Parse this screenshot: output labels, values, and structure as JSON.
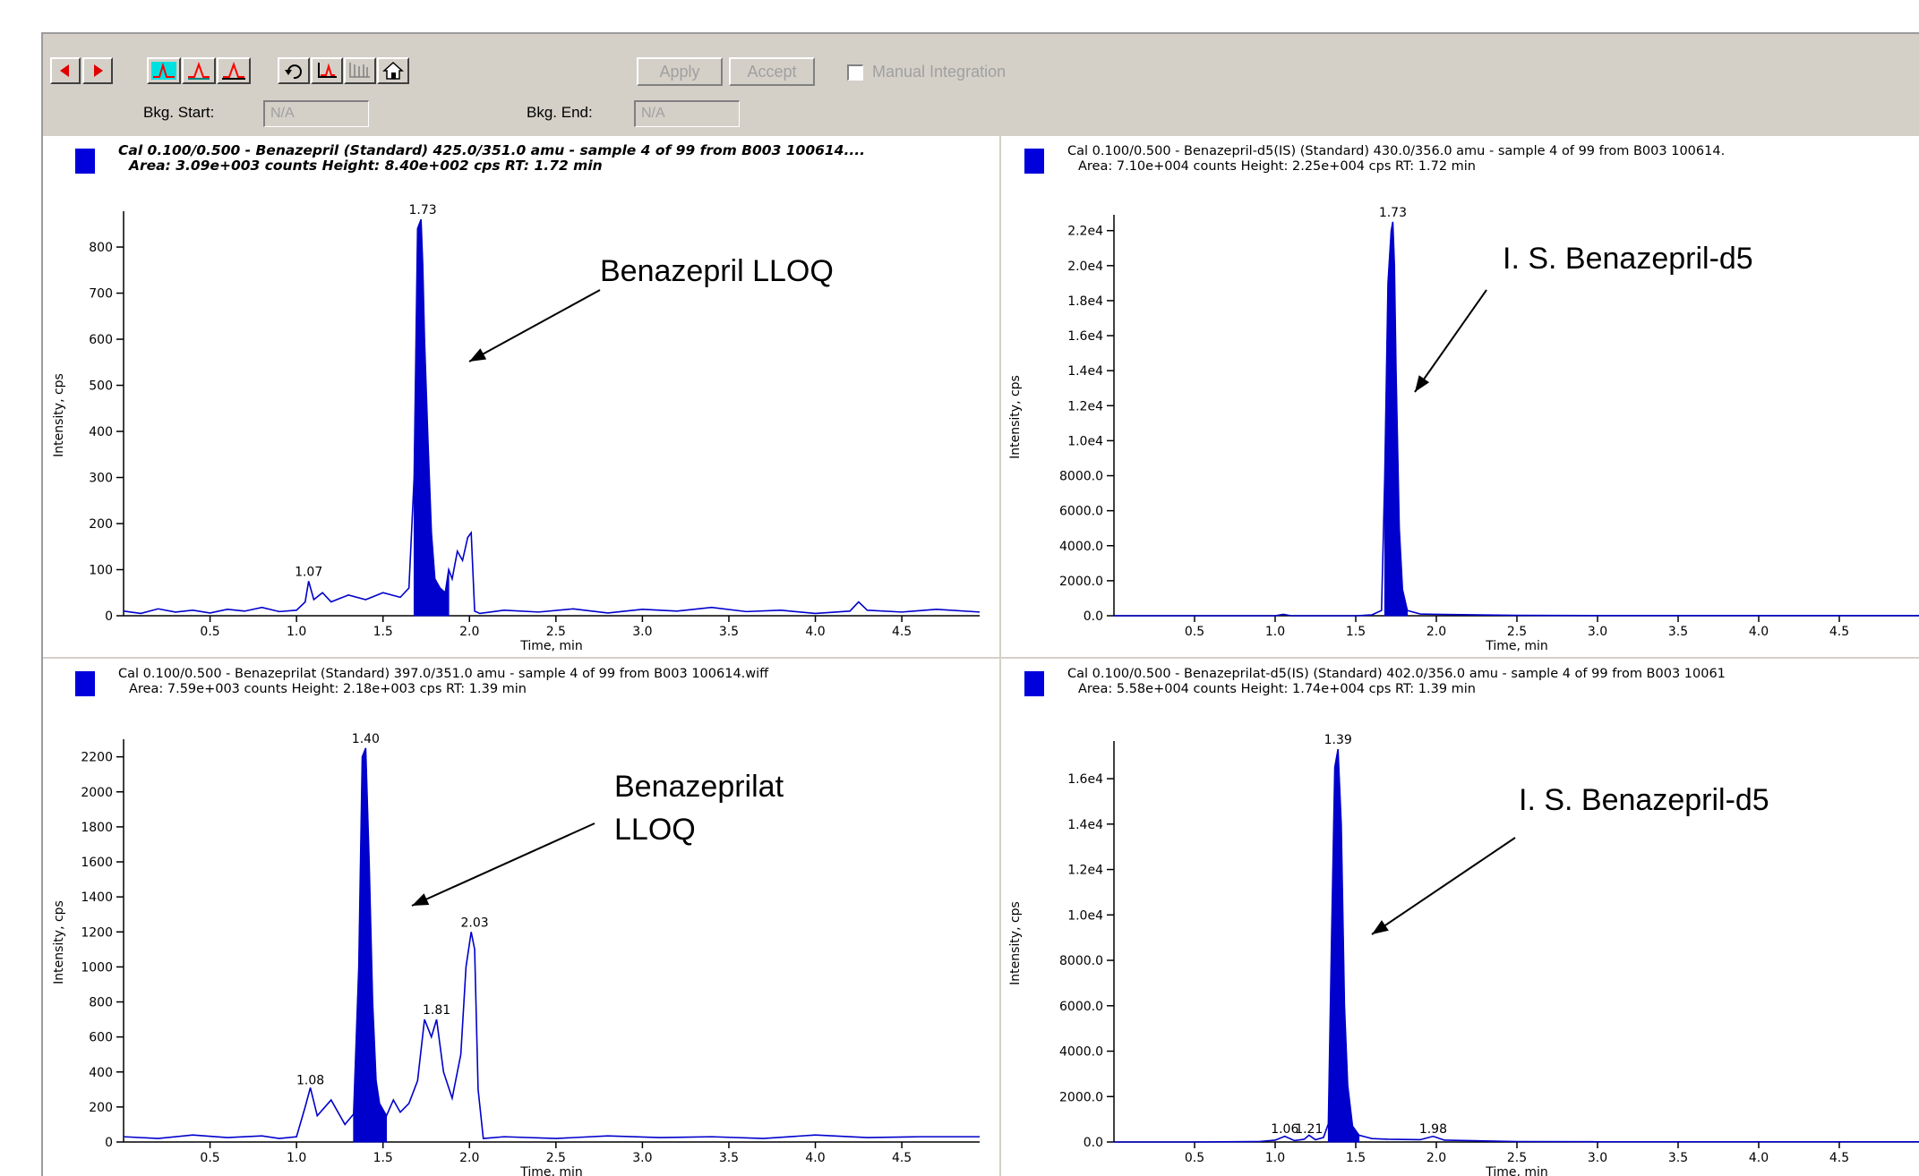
{
  "toolbar": {
    "apply_label": "Apply",
    "accept_label": "Accept",
    "manual_integration_label": "Manual Integration",
    "bkg_start_label": "Bkg. Start:",
    "bkg_start_value": "N/A",
    "bkg_end_label": "Bkg. End:",
    "bkg_end_value": "N/A",
    "icons": [
      "arrow-left-icon",
      "arrow-right-icon",
      "peak-cyan-icon",
      "peak-outline-icon",
      "peak-red-icon",
      "refresh-icon",
      "baseline-icon",
      "multi-peak-icon",
      "home-icon"
    ]
  },
  "colors": {
    "trace": "#0000cc",
    "marker": "#0000dd",
    "toolbar": "#d4d0c8",
    "arrow_red": "#d00000"
  },
  "panels": [
    {
      "header1": "Cal 0.100/0.500 - Benazepril (Standard) 425.0/351.0 amu - sample 4 of 99 from B003 100614....",
      "header2": "Area: 3.09e+003 counts  Height: 8.40e+002 cps  RT: 1.72 min",
      "header_style": "bold-italic",
      "annotation": "Benazepril LLOQ"
    },
    {
      "header1": "Cal 0.100/0.500 - Benazepril-d5(IS) (Standard) 430.0/356.0 amu - sample 4 of 99 from B003 100614.",
      "header2": "Area: 7.10e+004 counts  Height: 2.25e+004 cps  RT: 1.72 min",
      "header_style": "normal",
      "annotation": "I. S. Benazepril-d5"
    },
    {
      "header1": "Cal 0.100/0.500 - Benazeprilat (Standard) 397.0/351.0 amu - sample 4 of 99 from B003 100614.wiff",
      "header2": "Area: 7.59e+003 counts  Height: 2.18e+003 cps  RT: 1.39 min",
      "header_style": "normal",
      "annotation": "Benazeprilat\nLLOQ"
    },
    {
      "header1": "Cal 0.100/0.500 - Benazeprilat-d5(IS) (Standard) 402.0/356.0 amu - sample 4 of 99 from B003 10061",
      "header2": "Area: 5.58e+004 counts  Height: 1.74e+004 cps  RT: 1.39 min",
      "header_style": "normal",
      "annotation": "I. S. Benazepril-d5"
    }
  ],
  "chart_data": [
    {
      "type": "line",
      "xlabel": "Time, min",
      "ylabel": "Intensity, cps",
      "xlim": [
        0.0,
        4.95
      ],
      "ylim": [
        0,
        870
      ],
      "xticks": [
        0.5,
        1.0,
        1.5,
        2.0,
        2.5,
        3.0,
        3.5,
        4.0,
        4.5
      ],
      "xtick_labels": [
        "0.5",
        "1.0",
        "1.5",
        "2.0",
        "2.5",
        "3.0",
        "3.5",
        "4.0",
        "4.5"
      ],
      "yticks": [
        0,
        100,
        200,
        300,
        400,
        500,
        600,
        700,
        800
      ],
      "ytick_labels": [
        "0",
        "100",
        "200",
        "300",
        "400",
        "500",
        "600",
        "700",
        "800"
      ],
      "peak_labels": [
        {
          "x": 1.07,
          "y": 75,
          "text": "1.07"
        },
        {
          "x": 1.73,
          "y": 860,
          "text": "1.73"
        }
      ],
      "integrated_region": [
        1.66,
        1.88
      ],
      "series": [
        {
          "x": [
            0.0,
            0.1,
            0.2,
            0.3,
            0.4,
            0.5,
            0.6,
            0.7,
            0.8,
            0.9,
            1.0,
            1.05,
            1.07,
            1.1,
            1.15,
            1.2,
            1.3,
            1.4,
            1.5,
            1.6,
            1.65,
            1.68,
            1.7,
            1.72,
            1.73,
            1.74,
            1.76,
            1.78,
            1.8,
            1.83,
            1.86,
            1.88,
            1.9,
            1.93,
            1.96,
            1.99,
            2.01,
            2.03,
            2.06,
            2.2,
            2.4,
            2.6,
            2.8,
            3.0,
            3.2,
            3.4,
            3.6,
            3.8,
            4.0,
            4.2,
            4.25,
            4.3,
            4.5,
            4.7,
            4.95
          ],
          "y": [
            10,
            5,
            15,
            8,
            12,
            6,
            14,
            10,
            18,
            9,
            12,
            30,
            75,
            35,
            50,
            30,
            45,
            35,
            50,
            40,
            60,
            300,
            840,
            860,
            760,
            600,
            380,
            180,
            80,
            60,
            50,
            100,
            80,
            140,
            120,
            170,
            180,
            10,
            5,
            12,
            8,
            15,
            6,
            14,
            10,
            18,
            9,
            12,
            5,
            10,
            30,
            12,
            8,
            14,
            8
          ]
        }
      ]
    },
    {
      "type": "line",
      "xlabel": "Time, min",
      "ylabel": "Intensity, cps",
      "xlim": [
        0.0,
        5.0
      ],
      "ylim": [
        0,
        22700
      ],
      "xticks": [
        0.5,
        1.0,
        1.5,
        2.0,
        2.5,
        3.0,
        3.5,
        4.0,
        4.5
      ],
      "xtick_labels": [
        "0.5",
        "1.0",
        "1.5",
        "2.0",
        "2.5",
        "3.0",
        "3.5",
        "4.0",
        "4.5"
      ],
      "yticks": [
        0,
        2000,
        4000,
        6000,
        8000,
        10000,
        12000,
        14000,
        16000,
        18000,
        20000,
        22000
      ],
      "ytick_labels": [
        "0.0",
        "2000.0",
        "4000.0",
        "6000.0",
        "8000.0",
        "1.0e4",
        "1.2e4",
        "1.4e4",
        "1.6e4",
        "1.8e4",
        "2.0e4",
        "2.2e4"
      ],
      "peak_labels": [
        {
          "x": 1.73,
          "y": 22500,
          "text": "1.73"
        }
      ],
      "integrated_region": [
        1.67,
        1.82
      ],
      "series": [
        {
          "x": [
            0.0,
            0.5,
            1.0,
            1.05,
            1.1,
            1.5,
            1.6,
            1.66,
            1.68,
            1.7,
            1.72,
            1.73,
            1.74,
            1.75,
            1.77,
            1.79,
            1.82,
            1.9,
            2.0,
            2.5,
            3.0,
            3.5,
            4.0,
            4.5,
            5.0
          ],
          "y": [
            0,
            0,
            0,
            80,
            0,
            0,
            50,
            300,
            8000,
            19000,
            22000,
            22500,
            20000,
            14000,
            5000,
            1500,
            300,
            100,
            80,
            20,
            10,
            10,
            10,
            10,
            10
          ]
        }
      ]
    },
    {
      "type": "line",
      "xlabel": "Time, min",
      "ylabel": "Intensity, cps",
      "xlim": [
        0.0,
        4.95
      ],
      "ylim": [
        0,
        2280
      ],
      "xticks": [
        0.5,
        1.0,
        1.5,
        2.0,
        2.5,
        3.0,
        3.5,
        4.0,
        4.5
      ],
      "xtick_labels": [
        "0.5",
        "1.0",
        "1.5",
        "2.0",
        "2.5",
        "3.0",
        "3.5",
        "4.0",
        "4.5"
      ],
      "yticks": [
        0,
        200,
        400,
        600,
        800,
        1000,
        1200,
        1400,
        1600,
        1800,
        2000,
        2200
      ],
      "ytick_labels": [
        "0",
        "200",
        "400",
        "600",
        "800",
        "1000",
        "1200",
        "1400",
        "1600",
        "1800",
        "2000",
        "2200"
      ],
      "peak_labels": [
        {
          "x": 1.08,
          "y": 300,
          "text": "1.08"
        },
        {
          "x": 1.4,
          "y": 2250,
          "text": "1.40"
        },
        {
          "x": 1.81,
          "y": 700,
          "text": "1.81"
        },
        {
          "x": 2.03,
          "y": 1200,
          "text": "2.03"
        }
      ],
      "integrated_region": [
        1.33,
        1.52
      ],
      "series": [
        {
          "x": [
            0.0,
            0.2,
            0.4,
            0.6,
            0.8,
            0.9,
            1.0,
            1.05,
            1.08,
            1.12,
            1.2,
            1.28,
            1.33,
            1.36,
            1.38,
            1.4,
            1.42,
            1.44,
            1.46,
            1.48,
            1.52,
            1.56,
            1.6,
            1.65,
            1.7,
            1.74,
            1.78,
            1.81,
            1.85,
            1.9,
            1.95,
            1.98,
            2.01,
            2.03,
            2.05,
            2.08,
            2.2,
            2.5,
            2.8,
            3.1,
            3.4,
            3.7,
            4.0,
            4.3,
            4.6,
            4.95
          ],
          "y": [
            30,
            20,
            40,
            25,
            35,
            20,
            30,
            200,
            310,
            150,
            240,
            100,
            160,
            1000,
            2200,
            2250,
            1600,
            800,
            350,
            220,
            150,
            240,
            170,
            220,
            350,
            700,
            600,
            700,
            400,
            250,
            500,
            1000,
            1200,
            1100,
            300,
            20,
            30,
            20,
            35,
            25,
            30,
            20,
            40,
            25,
            30,
            30
          ]
        }
      ]
    },
    {
      "type": "line",
      "xlabel": "Time, min",
      "ylabel": "Intensity, cps",
      "xlim": [
        0.0,
        5.0
      ],
      "ylim": [
        0,
        17500
      ],
      "xticks": [
        0.5,
        1.0,
        1.5,
        2.0,
        2.5,
        3.0,
        3.5,
        4.0,
        4.5
      ],
      "xtick_labels": [
        "0.5",
        "1.0",
        "1.5",
        "2.0",
        "2.5",
        "3.0",
        "3.5",
        "4.0",
        "4.5"
      ],
      "yticks": [
        0,
        2000,
        4000,
        6000,
        8000,
        10000,
        12000,
        14000,
        16000
      ],
      "ytick_labels": [
        "0.0",
        "2000.0",
        "4000.0",
        "6000.0",
        "8000.0",
        "1.0e4",
        "1.2e4",
        "1.4e4",
        "1.6e4"
      ],
      "peak_labels": [
        {
          "x": 1.06,
          "y": 150,
          "text": "1.06"
        },
        {
          "x": 1.21,
          "y": 150,
          "text": "1.21"
        },
        {
          "x": 1.39,
          "y": 17300,
          "text": "1.39"
        },
        {
          "x": 1.98,
          "y": 150,
          "text": "1.98"
        }
      ],
      "integrated_region": [
        1.33,
        1.52
      ],
      "series": [
        {
          "x": [
            0.0,
            0.5,
            0.9,
            1.0,
            1.06,
            1.12,
            1.18,
            1.21,
            1.25,
            1.3,
            1.33,
            1.35,
            1.37,
            1.39,
            1.41,
            1.43,
            1.45,
            1.48,
            1.52,
            1.6,
            1.7,
            1.9,
            1.98,
            2.05,
            2.5,
            3.0,
            3.5,
            4.0,
            4.5,
            5.0
          ],
          "y": [
            0,
            0,
            20,
            80,
            250,
            60,
            120,
            300,
            100,
            200,
            800,
            9000,
            16500,
            17300,
            14000,
            6000,
            2500,
            700,
            300,
            150,
            120,
            100,
            250,
            80,
            20,
            10,
            10,
            10,
            10,
            10
          ]
        }
      ]
    }
  ]
}
